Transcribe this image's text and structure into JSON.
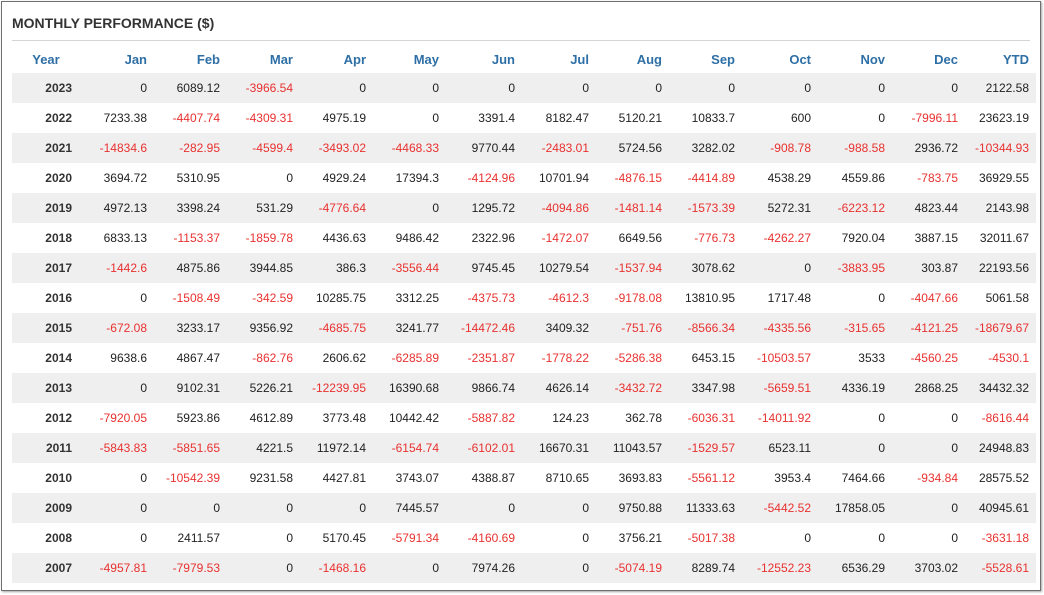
{
  "title": "MONTHLY PERFORMANCE ($)",
  "colors": {
    "header_text": "#2e6fa6",
    "negative_text": "#e8312f",
    "stripe_background": "#efefef"
  },
  "columns": [
    "Year",
    "Jan",
    "Feb",
    "Mar",
    "Apr",
    "May",
    "Jun",
    "Jul",
    "Aug",
    "Sep",
    "Oct",
    "Nov",
    "Dec",
    "YTD"
  ],
  "rows": [
    [
      "2023",
      "0",
      "6089.12",
      "-3966.54",
      "0",
      "0",
      "0",
      "0",
      "0",
      "0",
      "0",
      "0",
      "0",
      "2122.58"
    ],
    [
      "2022",
      "7233.38",
      "-4407.74",
      "-4309.31",
      "4975.19",
      "0",
      "3391.4",
      "8182.47",
      "5120.21",
      "10833.7",
      "600",
      "0",
      "-7996.11",
      "23623.19"
    ],
    [
      "2021",
      "-14834.6",
      "-282.95",
      "-4599.4",
      "-3493.02",
      "-4468.33",
      "9770.44",
      "-2483.01",
      "5724.56",
      "3282.02",
      "-908.78",
      "-988.58",
      "2936.72",
      "-10344.93"
    ],
    [
      "2020",
      "3694.72",
      "5310.95",
      "0",
      "4929.24",
      "17394.3",
      "-4124.96",
      "10701.94",
      "-4876.15",
      "-4414.89",
      "4538.29",
      "4559.86",
      "-783.75",
      "36929.55"
    ],
    [
      "2019",
      "4972.13",
      "3398.24",
      "531.29",
      "-4776.64",
      "0",
      "1295.72",
      "-4094.86",
      "-1481.14",
      "-1573.39",
      "5272.31",
      "-6223.12",
      "4823.44",
      "2143.98"
    ],
    [
      "2018",
      "6833.13",
      "-1153.37",
      "-1859.78",
      "4436.63",
      "9486.42",
      "2322.96",
      "-1472.07",
      "6649.56",
      "-776.73",
      "-4262.27",
      "7920.04",
      "3887.15",
      "32011.67"
    ],
    [
      "2017",
      "-1442.6",
      "4875.86",
      "3944.85",
      "386.3",
      "-3556.44",
      "9745.45",
      "10279.54",
      "-1537.94",
      "3078.62",
      "0",
      "-3883.95",
      "303.87",
      "22193.56"
    ],
    [
      "2016",
      "0",
      "-1508.49",
      "-342.59",
      "10285.75",
      "3312.25",
      "-4375.73",
      "-4612.3",
      "-9178.08",
      "13810.95",
      "1717.48",
      "0",
      "-4047.66",
      "5061.58"
    ],
    [
      "2015",
      "-672.08",
      "3233.17",
      "9356.92",
      "-4685.75",
      "3241.77",
      "-14472.46",
      "3409.32",
      "-751.76",
      "-8566.34",
      "-4335.56",
      "-315.65",
      "-4121.25",
      "-18679.67"
    ],
    [
      "2014",
      "9638.6",
      "4867.47",
      "-862.76",
      "2606.62",
      "-6285.89",
      "-2351.87",
      "-1778.22",
      "-5286.38",
      "6453.15",
      "-10503.57",
      "3533",
      "-4560.25",
      "-4530.1"
    ],
    [
      "2013",
      "0",
      "9102.31",
      "5226.21",
      "-12239.95",
      "16390.68",
      "9866.74",
      "4626.14",
      "-3432.72",
      "3347.98",
      "-5659.51",
      "4336.19",
      "2868.25",
      "34432.32"
    ],
    [
      "2012",
      "-7920.05",
      "5923.86",
      "4612.89",
      "3773.48",
      "10442.42",
      "-5887.82",
      "124.23",
      "362.78",
      "-6036.31",
      "-14011.92",
      "0",
      "0",
      "-8616.44"
    ],
    [
      "2011",
      "-5843.83",
      "-5851.65",
      "4221.5",
      "11972.14",
      "-6154.74",
      "-6102.01",
      "16670.31",
      "11043.57",
      "-1529.57",
      "6523.11",
      "0",
      "0",
      "24948.83"
    ],
    [
      "2010",
      "0",
      "-10542.39",
      "9231.58",
      "4427.81",
      "3743.07",
      "4388.87",
      "8710.65",
      "3693.83",
      "-5561.12",
      "3953.4",
      "7464.66",
      "-934.84",
      "28575.52"
    ],
    [
      "2009",
      "0",
      "0",
      "0",
      "0",
      "7445.57",
      "0",
      "0",
      "9750.88",
      "11333.63",
      "-5442.52",
      "17858.05",
      "0",
      "40945.61"
    ],
    [
      "2008",
      "0",
      "2411.57",
      "0",
      "5170.45",
      "-5791.34",
      "-4160.69",
      "0",
      "3756.21",
      "-5017.38",
      "0",
      "0",
      "0",
      "-3631.18"
    ],
    [
      "2007",
      "-4957.81",
      "-7979.53",
      "0",
      "-1468.16",
      "0",
      "7974.26",
      "0",
      "-5074.19",
      "8289.74",
      "-12552.23",
      "6536.29",
      "3703.02",
      "-5528.61"
    ]
  ]
}
